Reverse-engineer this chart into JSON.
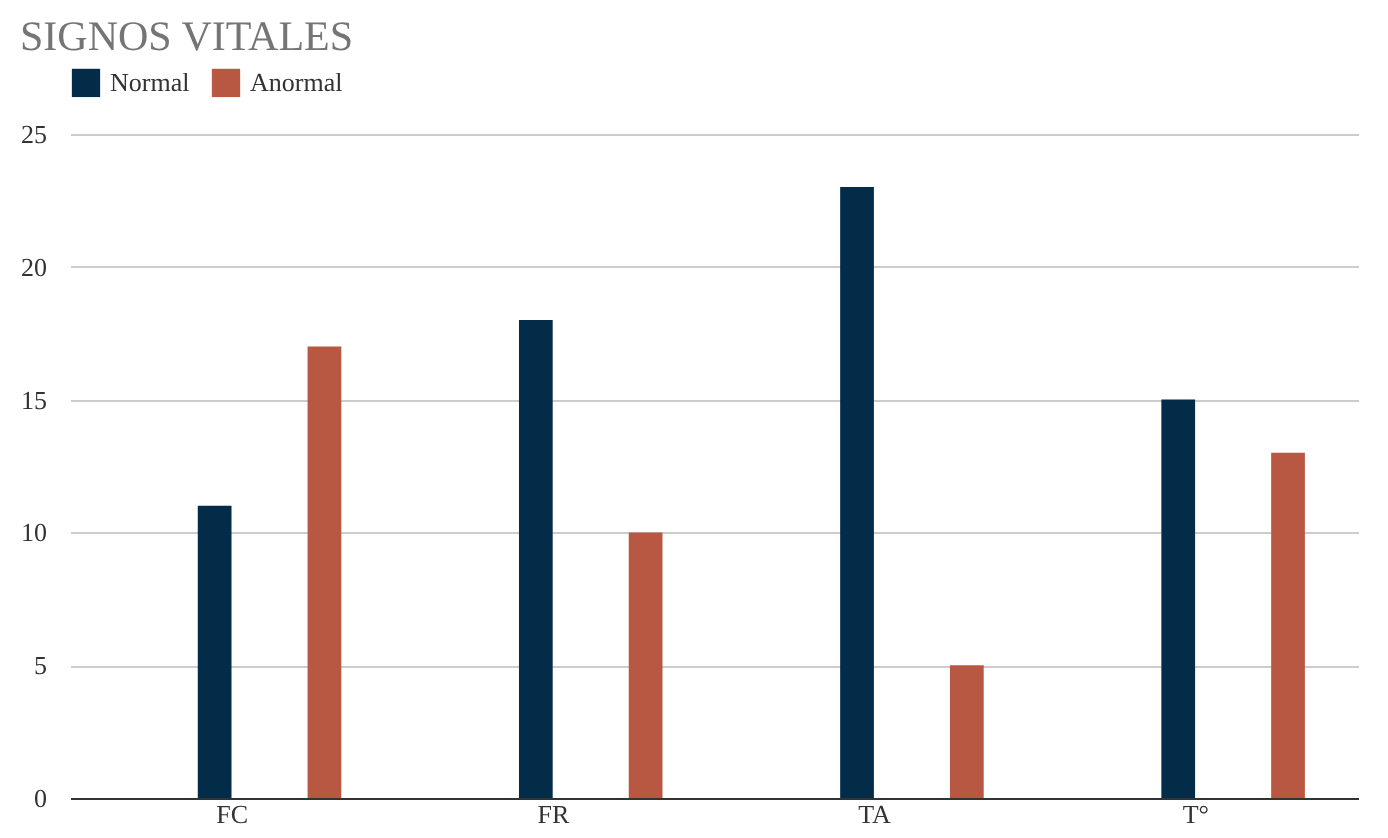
{
  "chart_data": {
    "type": "bar",
    "title": "SIGNOS VITALES",
    "categories": [
      "FC",
      "FR",
      "TA",
      "T°"
    ],
    "series": [
      {
        "name": "Normal",
        "color": "#022c48",
        "values": [
          11,
          18,
          23,
          15
        ]
      },
      {
        "name": "Anormal",
        "color": "#b85842",
        "values": [
          17,
          10,
          5,
          13
        ]
      }
    ],
    "ylim": [
      0,
      25
    ],
    "yticks": [
      0,
      5,
      10,
      15,
      20,
      25
    ],
    "grid": "y",
    "legend": "top"
  }
}
